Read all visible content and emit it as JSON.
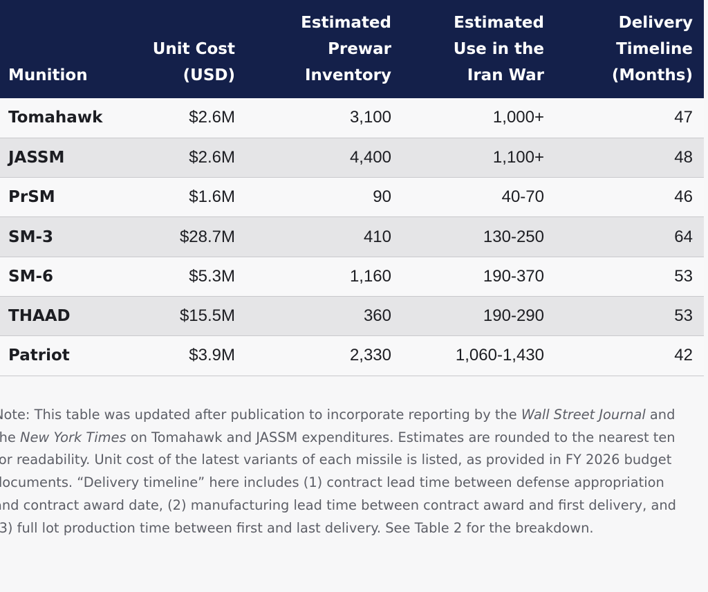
{
  "table": {
    "headers": [
      "Munition",
      "Unit Cost\n(USD)",
      "Estimated\nPrewar\nInventory",
      "Estimated\nUse in the\nIran War",
      "Delivery\nTimeline\n(Months)"
    ],
    "rows": [
      [
        "Tomahawk",
        "$2.6M",
        "3,100",
        "1,000+",
        "47"
      ],
      [
        "JASSM",
        "$2.6M",
        "4,400",
        "1,100+",
        "48"
      ],
      [
        "PrSM",
        "$1.6M",
        "90",
        "40-70",
        "46"
      ],
      [
        "SM-3",
        "$28.7M",
        "410",
        "130-250",
        "64"
      ],
      [
        "SM-6",
        "$5.3M",
        "1,160",
        "190-370",
        "53"
      ],
      [
        "THAAD",
        "$15.5M",
        "360",
        "190-290",
        "53"
      ],
      [
        "Patriot",
        "$3.9M",
        "2,330",
        "1,060-1,430",
        "42"
      ]
    ]
  },
  "note": {
    "part1": "Note: This table was updated after publication to incorporate reporting by the ",
    "wsj": "Wall Street Journal",
    "part2": " and the ",
    "nyt": "New York Times",
    "part3": " on Tomahawk and JASSM expenditures. Estimates are rounded to the nearest ten for readability. Unit cost of the latest variants of each missile is listed, as provided in FY 2026 budget documents. “Delivery timeline” here includes (1) contract lead time between defense appropriation and contract award date, (2) manufacturing lead time between contract award and first delivery, and (3) full lot production time between first and last delivery. See Table 2 for the breakdown."
  }
}
